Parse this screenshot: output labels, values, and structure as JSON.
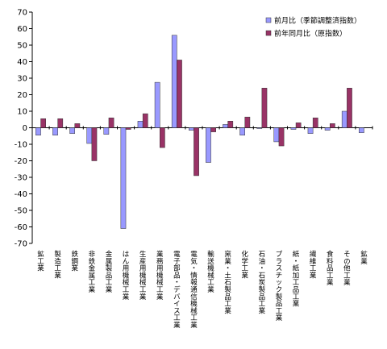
{
  "chart_data": {
    "type": "bar",
    "categories": [
      "鉱工業",
      "製造工業",
      "鉄鋼業",
      "非鉄金属工業",
      "金属製品工業",
      "はん用機械工業",
      "生産用機械工業",
      "業務用機械工業",
      "電子部品・デバイス工業",
      "電気・情報通信機械工業",
      "輸送機械工業",
      "窯業・土石製品工業",
      "化学工業",
      "石油・石炭製品工業",
      "プラスチック製品工業",
      "紙・紙加工品工業",
      "繊維工業",
      "食料品工業",
      "その他工業",
      "鉱業"
    ],
    "series": [
      {
        "name": "前月比（季節調整済指数）",
        "color": "#9999ff",
        "values": [
          -4.5,
          -4.5,
          -3.5,
          -9.5,
          -4.0,
          -61,
          4.0,
          27.5,
          56,
          -1.5,
          -21,
          2.0,
          -4.5,
          -0.5,
          -8.5,
          -1.0,
          -3.5,
          -1.5,
          10,
          -3.0
        ]
      },
      {
        "name": "前年同月比（原指数）",
        "color": "#993366",
        "values": [
          5.5,
          5.5,
          2.5,
          -20,
          6.0,
          -1.0,
          8.5,
          -12,
          41,
          -29,
          -2.5,
          4.0,
          6.5,
          24,
          -11,
          3.0,
          6.0,
          2.5,
          24,
          null
        ]
      }
    ],
    "ylim": [
      -70,
      70
    ],
    "yticks": [
      "70",
      "60",
      "50",
      "40",
      "30",
      "20",
      "10",
      "0",
      "-10",
      "-20",
      "-30",
      "-40",
      "-50",
      "-60",
      "-70"
    ],
    "legend_position": "top-right",
    "grid": false
  }
}
